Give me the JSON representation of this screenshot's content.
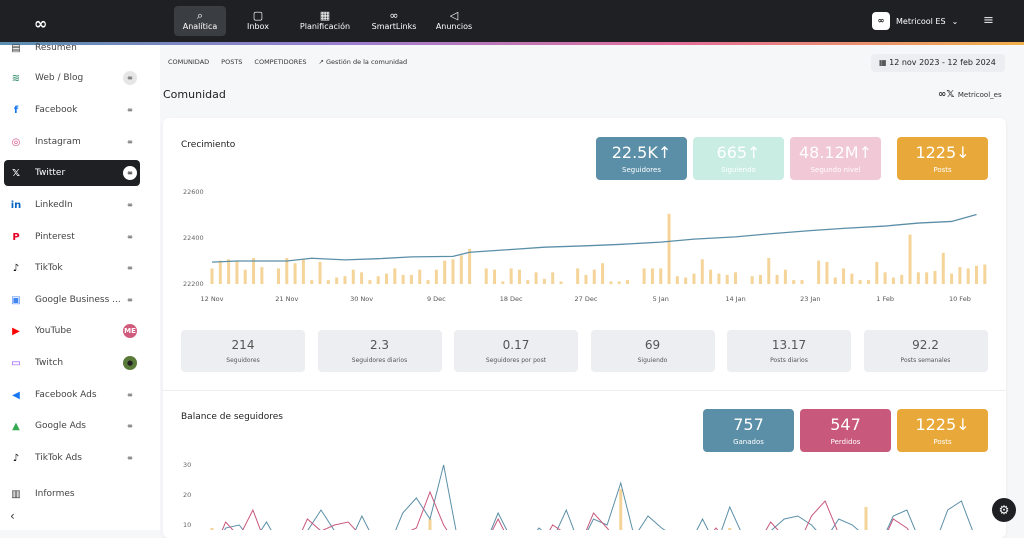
{
  "topbar": {
    "logo": "∞",
    "nav": [
      {
        "label": "Analítica",
        "icon": "analytics-icon",
        "glyph": "⌕",
        "active": true
      },
      {
        "label": "Inbox",
        "icon": "inbox-icon",
        "glyph": "▢"
      },
      {
        "label": "Planificación",
        "icon": "calendar-icon",
        "glyph": "▦"
      },
      {
        "label": "SmartLinks",
        "icon": "link-icon",
        "glyph": "∞"
      },
      {
        "label": "Anuncios",
        "icon": "megaphone-icon",
        "glyph": "◁"
      }
    ],
    "account": "Metricool ES",
    "account_avatar": "∞"
  },
  "sidebar": {
    "items": [
      {
        "label": "Resumen",
        "glyph": "▤",
        "color": "#333",
        "conn": ""
      },
      {
        "label": "Web / Blog",
        "glyph": "≋",
        "color": "#4a9a7a",
        "conn": "∞"
      },
      {
        "label": "Facebook",
        "glyph": "f",
        "color": "#1877f2",
        "conn": "∞"
      },
      {
        "label": "Instagram",
        "glyph": "◎",
        "color": "#d6477f",
        "conn": "∞"
      },
      {
        "label": "Twitter",
        "glyph": "𝕏",
        "color": "#fff",
        "conn": "∞",
        "active": true
      },
      {
        "label": "LinkedIn",
        "glyph": "in",
        "color": "#0a66c2",
        "conn": "∞"
      },
      {
        "label": "Pinterest",
        "glyph": "P",
        "color": "#e60023",
        "conn": "∞"
      },
      {
        "label": "TikTok",
        "glyph": "♪",
        "color": "#000",
        "conn": "∞"
      },
      {
        "label": "Google Business ...",
        "glyph": "▣",
        "color": "#4285f4",
        "conn": "∞"
      },
      {
        "label": "YouTube",
        "glyph": "▶",
        "color": "#ff0000",
        "conn": "ME"
      },
      {
        "label": "Twitch",
        "glyph": "▭",
        "color": "#9146ff",
        "conn": "●"
      },
      {
        "label": "Facebook Ads",
        "glyph": "◀",
        "color": "#1877f2",
        "conn": "∞"
      },
      {
        "label": "Google Ads",
        "glyph": "▲",
        "color": "#34a853",
        "conn": "∞"
      },
      {
        "label": "TikTok Ads",
        "glyph": "♪",
        "color": "#000",
        "conn": "∞"
      },
      {
        "label": "Informes",
        "glyph": "▥",
        "color": "#333",
        "conn": ""
      }
    ],
    "collapse": "‹"
  },
  "subnav": {
    "tabs": [
      "COMUNIDAD",
      "POSTS",
      "COMPETIDORES"
    ],
    "link": "Gestión de la comunidad",
    "date_range": "12 nov 2023 - 12 feb 2024"
  },
  "page": {
    "title": "Comunidad",
    "profile": "Metricool_es"
  },
  "growth": {
    "title": "Crecimiento",
    "kpis": [
      {
        "value": "22.5K↑",
        "label": "Seguidores",
        "color": "#5b8fa8"
      },
      {
        "value": "665↑",
        "label": "Siguiendo",
        "color": "#c9ede3"
      },
      {
        "value": "48.12M↑",
        "label": "Segundo nivel",
        "color": "#f1c8d5"
      },
      {
        "value": "1225↓",
        "label": "Posts",
        "color": "#e9a93a"
      }
    ],
    "stats": [
      {
        "value": "214",
        "label": "Seguidores"
      },
      {
        "value": "2.3",
        "label": "Seguidores diarios"
      },
      {
        "value": "0.17",
        "label": "Seguidores por post"
      },
      {
        "value": "69",
        "label": "Siguiendo"
      },
      {
        "value": "13.17",
        "label": "Posts diarios"
      },
      {
        "value": "92.2",
        "label": "Posts semanales"
      }
    ]
  },
  "balance": {
    "title": "Balance de seguidores",
    "kpis": [
      {
        "value": "757",
        "label": "Ganados",
        "color": "#5b8fa8"
      },
      {
        "value": "547",
        "label": "Perdidos",
        "color": "#c9587d"
      },
      {
        "value": "1225↓",
        "label": "Posts",
        "color": "#e9a93a"
      }
    ]
  },
  "chart_data": [
    {
      "type": "line",
      "title": "Crecimiento",
      "ylim": [
        22200,
        22600
      ],
      "yticks": [
        22200,
        22400,
        22600
      ],
      "xticks": [
        "12 Nov",
        "21 Nov",
        "30 Nov",
        "9 Dec",
        "18 Dec",
        "27 Dec",
        "5 Jan",
        "14 Jan",
        "23 Jan",
        "1 Feb",
        "10 Feb"
      ],
      "line": {
        "color": "#5b8fa8",
        "points": [
          [
            "2023-11-12",
            22295
          ],
          [
            "2023-11-15",
            22300
          ],
          [
            "2023-11-21",
            22300
          ],
          [
            "2023-11-24",
            22312
          ],
          [
            "2023-11-28",
            22305
          ],
          [
            "2023-12-02",
            22310
          ],
          [
            "2023-12-06",
            22318
          ],
          [
            "2023-12-11",
            22320
          ],
          [
            "2023-12-13",
            22338
          ],
          [
            "2023-12-18",
            22350
          ],
          [
            "2023-12-22",
            22360
          ],
          [
            "2023-12-27",
            22366
          ],
          [
            "2023-12-31",
            22372
          ],
          [
            "2024-01-05",
            22382
          ],
          [
            "2024-01-09",
            22395
          ],
          [
            "2024-01-14",
            22405
          ],
          [
            "2024-01-18",
            22418
          ],
          [
            "2024-01-23",
            22432
          ],
          [
            "2024-01-27",
            22442
          ],
          [
            "2024-02-01",
            22452
          ],
          [
            "2024-02-05",
            22465
          ],
          [
            "2024-02-09",
            22472
          ],
          [
            "2024-02-12",
            22502
          ]
        ]
      },
      "bars": {
        "color": "#f5d49a",
        "values": [
          12,
          18,
          19,
          18,
          11,
          20,
          13,
          0,
          12,
          20,
          16,
          19,
          3,
          17,
          3,
          5,
          6,
          11,
          9,
          3,
          6,
          8,
          12,
          7,
          7,
          11,
          3,
          11,
          18,
          19,
          22,
          27,
          0,
          12,
          11,
          2,
          12,
          11,
          3,
          9,
          4,
          9,
          2,
          0,
          12,
          7,
          11,
          16,
          2,
          2,
          3,
          0,
          12,
          12,
          12,
          54,
          6,
          5,
          8,
          19,
          11,
          8,
          7,
          9,
          0,
          6,
          7,
          20,
          7,
          11,
          3,
          3,
          0,
          18,
          17,
          5,
          12,
          8,
          3,
          3,
          17,
          9,
          5,
          7,
          38,
          9,
          9,
          10,
          24,
          8,
          13,
          12,
          14,
          15
        ]
      }
    },
    {
      "type": "line",
      "title": "Balance de seguidores",
      "ylim": [
        0,
        30
      ],
      "yticks": [
        10,
        20,
        30
      ],
      "series": [
        {
          "color": "#5b8fa8",
          "values": [
            0,
            9,
            10,
            4,
            11,
            3,
            5,
            8,
            15,
            8,
            3,
            13,
            4,
            3,
            14,
            19,
            12,
            30,
            6,
            3,
            3,
            14,
            5,
            3,
            9,
            5,
            15,
            3,
            12,
            10,
            24,
            6,
            13,
            9,
            6,
            3,
            12,
            3,
            16,
            6,
            3,
            8,
            12,
            13,
            10,
            5,
            12,
            10,
            6,
            3,
            13,
            15,
            4,
            3,
            15,
            18,
            6
          ]
        },
        {
          "color": "#c9587d",
          "values": [
            0,
            11,
            6,
            15,
            3,
            8,
            2,
            12,
            8,
            10,
            11,
            6,
            3,
            2,
            7,
            9,
            21,
            10,
            3,
            2,
            3,
            12,
            3,
            5,
            2,
            10,
            7,
            3,
            14,
            9,
            3,
            8,
            3,
            3,
            2,
            3,
            4,
            9,
            3,
            2,
            3,
            11,
            6,
            3,
            13,
            18,
            7,
            8,
            3,
            2,
            12,
            9,
            3,
            2,
            3,
            4,
            3
          ]
        }
      ],
      "bars": {
        "color": "#f5d49a",
        "values": [
          9,
          0,
          0,
          0,
          0,
          0,
          0,
          0,
          0,
          0,
          0,
          0,
          0,
          0,
          0,
          0,
          12,
          0,
          0,
          0,
          0,
          0,
          0,
          0,
          0,
          0,
          0,
          0,
          0,
          0,
          22,
          0,
          0,
          0,
          0,
          0,
          0,
          0,
          9,
          0,
          0,
          0,
          0,
          0,
          0,
          0,
          0,
          0,
          16,
          0,
          0,
          0,
          0,
          0,
          0,
          0,
          0
        ]
      }
    }
  ]
}
